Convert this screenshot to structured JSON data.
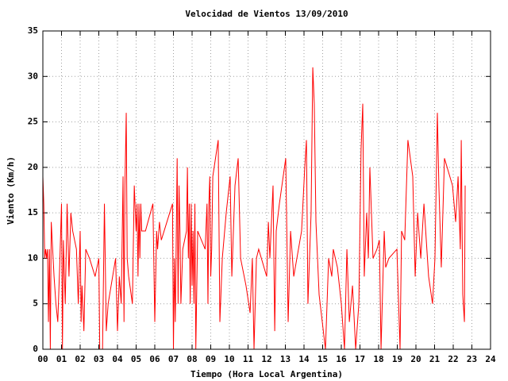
{
  "chart_data": {
    "type": "line",
    "title": "Velocidad de Vientos 13/09/2010",
    "xlabel": "Tiempo (Hora Local Argentina)",
    "ylabel": "Viento (Km/h)",
    "color": "#ff0000",
    "grid": true,
    "xlim": [
      0,
      24
    ],
    "ylim": [
      0,
      35
    ],
    "xticks": [
      {
        "value": 0,
        "label": "00"
      },
      {
        "value": 1,
        "label": "01"
      },
      {
        "value": 2,
        "label": "02"
      },
      {
        "value": 3,
        "label": "03"
      },
      {
        "value": 4,
        "label": "04"
      },
      {
        "value": 5,
        "label": "05"
      },
      {
        "value": 6,
        "label": "06"
      },
      {
        "value": 7,
        "label": "07"
      },
      {
        "value": 8,
        "label": "08"
      },
      {
        "value": 9,
        "label": "09"
      },
      10,
      11,
      12,
      13,
      14,
      15,
      16,
      17,
      18,
      19,
      20,
      21,
      22,
      23,
      24
    ],
    "yticks": [
      0,
      5,
      10,
      15,
      20,
      25,
      30,
      35
    ],
    "x": [
      0.0,
      0.05,
      0.1,
      0.15,
      0.2,
      0.25,
      0.3,
      0.35,
      0.4,
      0.45,
      0.5,
      0.6,
      0.7,
      0.8,
      0.9,
      1.0,
      1.05,
      1.1,
      1.2,
      1.3,
      1.4,
      1.5,
      1.6,
      1.8,
      1.9,
      2.0,
      2.05,
      2.1,
      2.2,
      2.3,
      2.5,
      2.8,
      3.0,
      3.05,
      3.2,
      3.3,
      3.4,
      3.5,
      3.9,
      4.0,
      4.1,
      4.2,
      4.3,
      4.35,
      4.4,
      4.47,
      4.52,
      4.6,
      4.8,
      4.9,
      5.0,
      5.05,
      5.1,
      5.15,
      5.2,
      5.25,
      5.3,
      5.5,
      5.9,
      6.0,
      6.1,
      6.15,
      6.25,
      6.35,
      6.5,
      6.95,
      7.0,
      7.05,
      7.1,
      7.2,
      7.25,
      7.3,
      7.35,
      7.4,
      7.5,
      7.7,
      7.75,
      7.8,
      7.85,
      7.9,
      7.95,
      8.0,
      8.05,
      8.1,
      8.15,
      8.2,
      8.3,
      8.5,
      8.7,
      8.8,
      8.85,
      8.9,
      8.95,
      9.0,
      9.05,
      9.11,
      9.4,
      9.49,
      9.62,
      9.83,
      10.04,
      10.13,
      10.3,
      10.47,
      10.6,
      10.89,
      11.11,
      11.23,
      11.32,
      11.45,
      11.57,
      12.0,
      12.09,
      12.17,
      12.34,
      12.43,
      12.51,
      12.68,
      13.02,
      13.15,
      13.28,
      13.45,
      13.87,
      14.04,
      14.13,
      14.21,
      14.38,
      14.47,
      14.55,
      14.64,
      14.81,
      14.98,
      15.15,
      15.32,
      15.49,
      15.57,
      15.79,
      16.0,
      16.17,
      16.3,
      16.43,
      16.6,
      16.77,
      16.94,
      17.06,
      17.15,
      17.23,
      17.36,
      17.45,
      17.53,
      17.7,
      17.91,
      18.04,
      18.13,
      18.3,
      18.38,
      18.55,
      18.98,
      19.15,
      19.23,
      19.4,
      19.57,
      19.83,
      19.96,
      20.09,
      20.26,
      20.43,
      20.68,
      20.89,
      21.02,
      21.15,
      21.23,
      21.36,
      21.53,
      21.96,
      22.13,
      22.26,
      22.38,
      22.43,
      22.51,
      22.6,
      22.64
    ],
    "values": [
      19,
      16,
      10,
      11,
      10,
      11,
      3,
      11,
      0,
      14,
      12,
      8,
      5,
      3,
      9,
      16,
      0,
      12,
      5,
      16,
      8,
      15,
      13,
      11,
      5,
      13,
      3,
      7,
      2,
      11,
      10,
      8,
      10,
      0,
      0,
      16,
      2,
      5,
      10,
      2,
      8,
      5,
      19,
      3,
      18,
      26,
      10,
      8,
      5,
      18,
      13,
      16,
      8,
      16,
      10,
      16,
      13,
      13,
      16,
      3,
      13,
      11,
      14,
      12,
      13,
      16,
      0,
      10,
      3,
      21,
      5,
      18,
      13,
      5,
      11,
      13,
      20,
      10,
      16,
      5,
      16,
      7,
      13,
      5,
      16,
      0,
      13,
      12,
      11,
      16,
      5,
      16,
      19,
      8,
      11,
      19,
      23,
      3,
      10,
      15,
      19,
      8,
      18,
      21,
      10,
      7,
      4,
      10,
      0,
      10,
      11,
      8,
      14,
      10,
      18,
      2,
      13,
      16,
      21,
      3,
      13,
      8,
      13,
      20,
      23,
      5,
      15,
      31,
      27,
      14,
      6,
      3,
      0,
      10,
      8,
      11,
      9,
      5,
      0,
      11,
      3,
      7,
      0,
      5,
      22,
      27,
      8,
      15,
      10,
      20,
      10,
      11,
      12,
      0,
      13,
      9,
      10,
      11,
      0,
      13,
      12,
      23,
      19,
      8,
      15,
      10,
      16,
      8,
      5,
      10,
      26,
      18,
      9,
      21,
      18,
      14,
      19,
      11,
      23,
      6,
      3,
      18
    ]
  }
}
